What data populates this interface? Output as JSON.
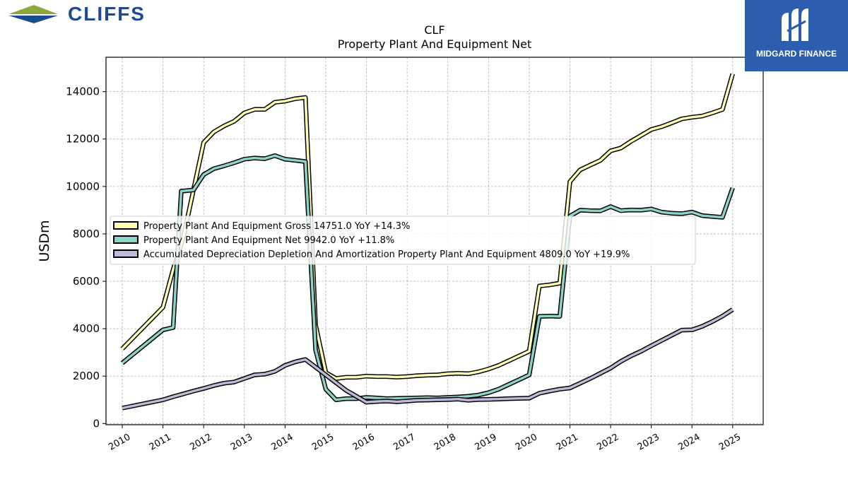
{
  "branding": {
    "company_logo_text": "CLIFFS",
    "publisher_logo_text": "MIDGARD FINANCE",
    "colors": {
      "cliffs_blue": "#1e4a8f",
      "cliffs_green": "#8ba83a",
      "midgard_blue": "#2d5dad"
    }
  },
  "chart_data": {
    "type": "line",
    "title": "CLF",
    "subtitle": "Property Plant And Equipment Net",
    "xlabel": "",
    "ylabel": "USDm",
    "xlim": [
      2009.6,
      2025.75
    ],
    "ylim": [
      -50,
      15450
    ],
    "xticks": [
      "2010",
      "2011",
      "2012",
      "2013",
      "2014",
      "2015",
      "2016",
      "2017",
      "2018",
      "2019",
      "2020",
      "2021",
      "2022",
      "2023",
      "2024",
      "2025"
    ],
    "yticks": [
      "0",
      "2000",
      "4000",
      "6000",
      "8000",
      "10000",
      "12000",
      "14000"
    ],
    "grid": true,
    "legend_position": "center-left",
    "series": [
      {
        "name": "Property Plant And Equipment Gross",
        "legend_label": "Property Plant And Equipment Gross  14751.0 YoY +14.3%",
        "color": "#ffffb3",
        "x": [
          2010.0,
          2011.0,
          2011.25,
          2011.5,
          2011.75,
          2012.0,
          2012.25,
          2012.5,
          2012.75,
          2013.0,
          2013.25,
          2013.5,
          2013.75,
          2014.0,
          2014.25,
          2014.5,
          2014.75,
          2015.0,
          2015.25,
          2015.5,
          2015.75,
          2016.0,
          2016.25,
          2016.5,
          2016.75,
          2017.0,
          2017.25,
          2017.5,
          2017.75,
          2018.0,
          2018.25,
          2018.5,
          2018.75,
          2019.0,
          2019.25,
          2019.5,
          2019.75,
          2020.0,
          2020.25,
          2020.5,
          2020.75,
          2021.0,
          2021.25,
          2021.5,
          2021.75,
          2022.0,
          2022.25,
          2022.5,
          2022.75,
          2023.0,
          2023.25,
          2023.5,
          2023.75,
          2024.0,
          2024.25,
          2024.5,
          2024.75,
          2025.0
        ],
        "values": [
          3150,
          4900,
          6500,
          7850,
          9850,
          11850,
          12300,
          12550,
          12750,
          13100,
          13250,
          13250,
          13550,
          13600,
          13700,
          13750,
          4150,
          2150,
          1900,
          1950,
          1950,
          2000,
          1980,
          1980,
          1960,
          1980,
          2020,
          2040,
          2050,
          2100,
          2120,
          2100,
          2180,
          2300,
          2450,
          2650,
          2850,
          3050,
          5800,
          5850,
          5920,
          10200,
          10700,
          10900,
          11100,
          11500,
          11620,
          11900,
          12150,
          12400,
          12520,
          12680,
          12850,
          12920,
          12970,
          13100,
          13250,
          14751
        ]
      },
      {
        "name": "Property Plant And Equipment Net",
        "legend_label": "Property Plant And Equipment Net  9942.0 YoY +11.8%",
        "color": "#8dd3c7",
        "x": [
          2010.0,
          2011.0,
          2011.25,
          2011.45,
          2011.75,
          2012.0,
          2012.25,
          2012.5,
          2012.75,
          2013.0,
          2013.25,
          2013.5,
          2013.75,
          2014.0,
          2014.25,
          2014.5,
          2014.75,
          2015.0,
          2015.25,
          2015.5,
          2015.75,
          2016.0,
          2016.25,
          2016.5,
          2016.75,
          2017.0,
          2017.25,
          2017.5,
          2017.75,
          2018.0,
          2018.25,
          2018.5,
          2018.75,
          2019.0,
          2019.25,
          2019.5,
          2019.75,
          2020.0,
          2020.25,
          2020.5,
          2020.75,
          2021.0,
          2021.25,
          2021.5,
          2021.75,
          2022.0,
          2022.25,
          2022.5,
          2022.75,
          2023.0,
          2023.25,
          2023.5,
          2023.75,
          2024.0,
          2024.25,
          2024.5,
          2024.75,
          2025.0
        ],
        "values": [
          2550,
          3950,
          4050,
          9800,
          9850,
          10500,
          10750,
          10870,
          11000,
          11150,
          11200,
          11170,
          11300,
          11150,
          11100,
          11050,
          3100,
          1450,
          1000,
          1050,
          1050,
          1100,
          1080,
          1050,
          1060,
          1070,
          1080,
          1090,
          1080,
          1100,
          1120,
          1150,
          1200,
          1300,
          1450,
          1650,
          1850,
          2050,
          4520,
          4530,
          4520,
          8750,
          9000,
          8980,
          8970,
          9150,
          8980,
          9010,
          9000,
          9050,
          8920,
          8870,
          8850,
          8920,
          8770,
          8730,
          8700,
          9942
        ]
      },
      {
        "name": "Accumulated Depreciation Depletion And Amortization Property Plant And Equipment",
        "legend_label": "Accumulated Depreciation Depletion And Amortization Property Plant And Equipment  4809.0 YoY +19.9%",
        "color": "#bebada",
        "x": [
          2010.0,
          2011.0,
          2011.25,
          2011.5,
          2011.75,
          2012.0,
          2012.25,
          2012.5,
          2012.75,
          2013.0,
          2013.25,
          2013.5,
          2013.75,
          2014.0,
          2014.25,
          2014.5,
          2015.0,
          2015.5,
          2016.0,
          2016.25,
          2016.5,
          2016.75,
          2017.0,
          2017.25,
          2017.5,
          2017.75,
          2018.0,
          2018.25,
          2018.5,
          2018.75,
          2019.0,
          2019.25,
          2019.5,
          2019.75,
          2020.0,
          2020.25,
          2020.5,
          2020.75,
          2021.0,
          2021.25,
          2021.5,
          2021.75,
          2022.0,
          2022.25,
          2022.5,
          2022.75,
          2023.0,
          2023.25,
          2023.5,
          2023.75,
          2024.0,
          2024.25,
          2024.5,
          2024.75,
          2025.0
        ],
        "values": [
          650,
          1000,
          1130,
          1250,
          1370,
          1480,
          1600,
          1700,
          1750,
          1900,
          2050,
          2080,
          2200,
          2450,
          2600,
          2700,
          2050,
          1400,
          900,
          930,
          950,
          920,
          950,
          980,
          990,
          1000,
          1010,
          1030,
          980,
          1010,
          1020,
          1030,
          1050,
          1060,
          1070,
          1280,
          1370,
          1450,
          1500,
          1700,
          1900,
          2120,
          2340,
          2620,
          2850,
          3050,
          3280,
          3500,
          3720,
          3940,
          3950,
          4100,
          4300,
          4530,
          4809
        ]
      }
    ]
  }
}
